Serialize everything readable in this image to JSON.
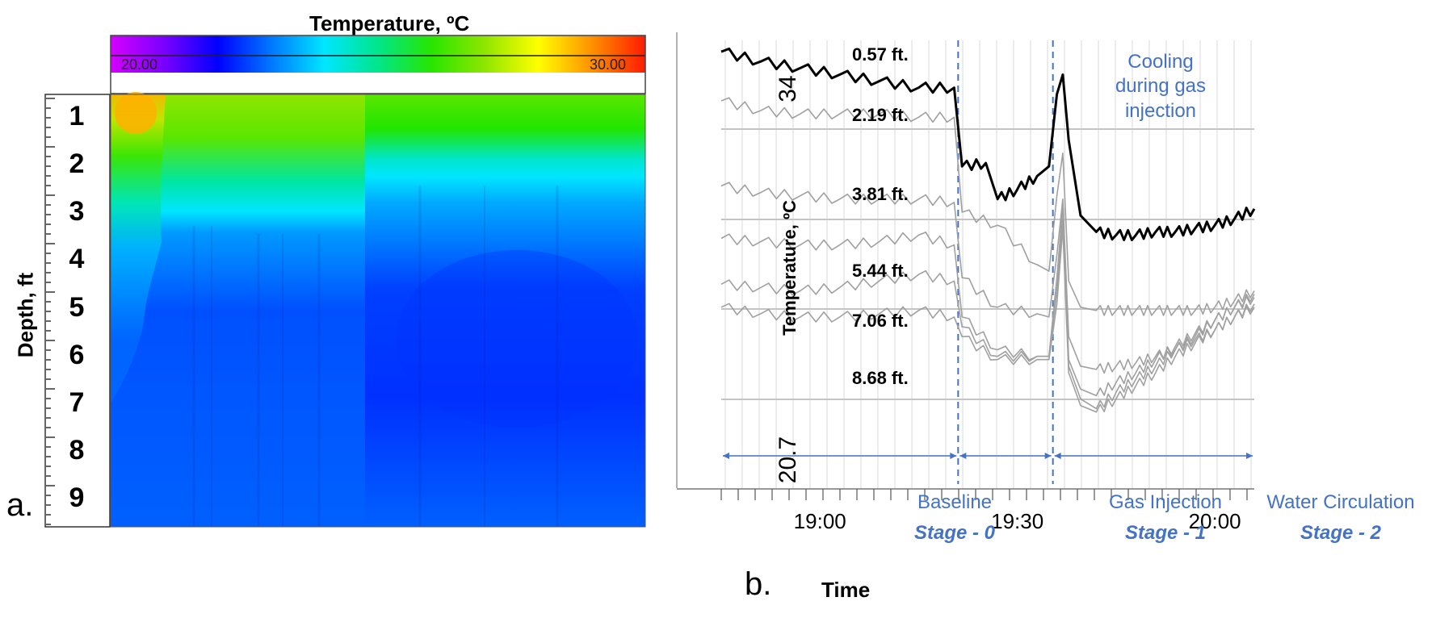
{
  "panel_a": {
    "letter": "a.",
    "colorbar": {
      "title": "Temperature, ºC",
      "min_label": "20.00",
      "max_label": "30.00",
      "colors": [
        "#d400ff",
        "#7a00ff",
        "#0000ff",
        "#0077ff",
        "#00e6ff",
        "#00e68a",
        "#27e600",
        "#8fe600",
        "#ffff00",
        "#ff9000",
        "#ff1a00"
      ]
    },
    "ylabel": "Depth, ft",
    "depth_ticks": [
      "1",
      "2",
      "3",
      "4",
      "5",
      "6",
      "7",
      "8",
      "9"
    ]
  },
  "panel_b": {
    "letter": "b.",
    "ylabel": "Temperature, ºC",
    "y_top_label": "34",
    "y_bottom_label": "20.7",
    "x_title": "Time",
    "annotation": [
      "Cooling",
      "during gas",
      "injection"
    ],
    "stages": [
      {
        "name": "Baseline",
        "stage": "Stage - 0"
      },
      {
        "name": "Gas Injection",
        "stage": "Stage - 1"
      },
      {
        "name": "Water Circulation",
        "stage": "Stage - 2"
      }
    ],
    "accent_color": "#4472c4"
  },
  "chart_data": [
    {
      "type": "heatmap",
      "title": "Temperature, ºC",
      "xlabel": "",
      "ylabel": "Depth, ft",
      "yticks": [
        1,
        2,
        3,
        4,
        5,
        6,
        7,
        8,
        9
      ],
      "ylim": [
        0.5,
        9.5
      ],
      "colorscale_range": [
        20.0,
        30.0
      ]
    },
    {
      "type": "line",
      "title": "",
      "xlabel": "Time",
      "ylabel": "Temperature, ºC",
      "ylim": [
        20.7,
        34
      ],
      "xlim_minutes": [
        18.75,
        20.1
      ],
      "xticks": [
        {
          "label": "19:00",
          "t": 19.0
        },
        {
          "label": "19:30",
          "t": 19.5
        },
        {
          "label": "20:00",
          "t": 20.0
        }
      ],
      "stage_boundaries": [
        19.35,
        19.59
      ],
      "series": [
        {
          "name": "0.57 ft.",
          "t": [
            18.75,
            18.85,
            18.95,
            19.05,
            19.15,
            19.25,
            19.34,
            19.36,
            19.42,
            19.45,
            19.5,
            19.55,
            19.58,
            19.6,
            19.615,
            19.63,
            19.66,
            19.7,
            19.75,
            19.8,
            19.85,
            19.9,
            19.95,
            20.0,
            20.05,
            20.1
          ],
          "values": [
            33.9,
            33.6,
            33.4,
            33.2,
            33.0,
            32.8,
            32.8,
            30.4,
            30.5,
            29.4,
            29.7,
            30.1,
            30.4,
            32.6,
            33.2,
            31.2,
            28.9,
            28.4,
            28.3,
            28.3,
            28.4,
            28.4,
            28.5,
            28.6,
            28.8,
            29.1
          ]
        },
        {
          "name": "2.19 ft.",
          "t": [
            18.75,
            18.85,
            18.95,
            19.05,
            19.15,
            19.25,
            19.34,
            19.36,
            19.45,
            19.55,
            19.58,
            19.6,
            19.615,
            19.63,
            19.66,
            19.7,
            19.75,
            19.8,
            19.85,
            19.9,
            19.95,
            20.0,
            20.05,
            20.1
          ],
          "values": [
            32.4,
            32.1,
            32.0,
            32.0,
            32.0,
            31.9,
            31.9,
            29.0,
            28.6,
            27.4,
            27.2,
            29.5,
            30.8,
            26.9,
            26.1,
            26.0,
            26.0,
            26.0,
            26.0,
            26.0,
            26.0,
            26.1,
            26.3,
            26.6
          ]
        },
        {
          "name": "3.81 ft.",
          "t": [
            18.75,
            18.85,
            18.95,
            19.05,
            19.15,
            19.25,
            19.34,
            19.36,
            19.45,
            19.55,
            19.58,
            19.6,
            19.615,
            19.63,
            19.66,
            19.7,
            19.75,
            19.8,
            19.85,
            19.9,
            19.95,
            20.0,
            20.05,
            20.1
          ],
          "values": [
            29.8,
            29.6,
            29.5,
            29.4,
            29.4,
            29.4,
            29.3,
            27.0,
            26.1,
            25.9,
            25.8,
            27.7,
            29.4,
            25.2,
            24.3,
            24.2,
            24.3,
            24.4,
            24.6,
            24.8,
            25.1,
            25.4,
            25.8,
            26.1
          ]
        },
        {
          "name": "5.44 ft.",
          "t": [
            18.75,
            18.85,
            18.95,
            19.05,
            19.15,
            19.25,
            19.34,
            19.36,
            19.45,
            19.55,
            19.58,
            19.6,
            19.615,
            19.63,
            19.66,
            19.7,
            19.75,
            19.8,
            19.85,
            19.9,
            19.95,
            20.0,
            20.05,
            20.1
          ],
          "values": [
            28.2,
            28.1,
            28.0,
            28.0,
            28.1,
            28.3,
            28.0,
            25.8,
            24.8,
            24.6,
            24.6,
            27.0,
            29.2,
            24.5,
            23.6,
            23.4,
            23.8,
            24.1,
            24.5,
            24.9,
            25.3,
            25.7,
            26.1,
            26.5
          ]
        },
        {
          "name": "7.06 ft.",
          "t": [
            18.75,
            18.85,
            18.95,
            19.05,
            19.15,
            19.25,
            19.34,
            19.36,
            19.45,
            19.55,
            19.58,
            19.6,
            19.615,
            19.63,
            19.66,
            19.7,
            19.75,
            19.8,
            19.85,
            19.9,
            19.95,
            20.0,
            20.05,
            20.1
          ],
          "values": [
            26.8,
            26.7,
            26.6,
            26.7,
            26.9,
            27.1,
            26.9,
            25.5,
            24.6,
            24.6,
            24.6,
            26.6,
            28.8,
            24.3,
            23.3,
            23.0,
            23.5,
            23.9,
            24.3,
            24.8,
            25.2,
            25.7,
            26.1,
            26.4
          ]
        },
        {
          "name": "8.68 ft.",
          "t": [
            18.75,
            18.85,
            18.95,
            19.05,
            19.15,
            19.25,
            19.34,
            19.36,
            19.45,
            19.55,
            19.58,
            19.6,
            19.615,
            19.63,
            19.66,
            19.7,
            19.75,
            19.8,
            19.85,
            19.9,
            19.95,
            20.0,
            20.05,
            20.1
          ],
          "values": [
            26.1,
            25.9,
            25.8,
            25.8,
            25.9,
            26.0,
            25.8,
            25.2,
            24.5,
            24.5,
            24.5,
            26.2,
            28.5,
            24.1,
            23.1,
            22.9,
            23.3,
            23.7,
            24.1,
            24.6,
            25.0,
            25.4,
            25.8,
            26.2
          ]
        }
      ]
    }
  ]
}
